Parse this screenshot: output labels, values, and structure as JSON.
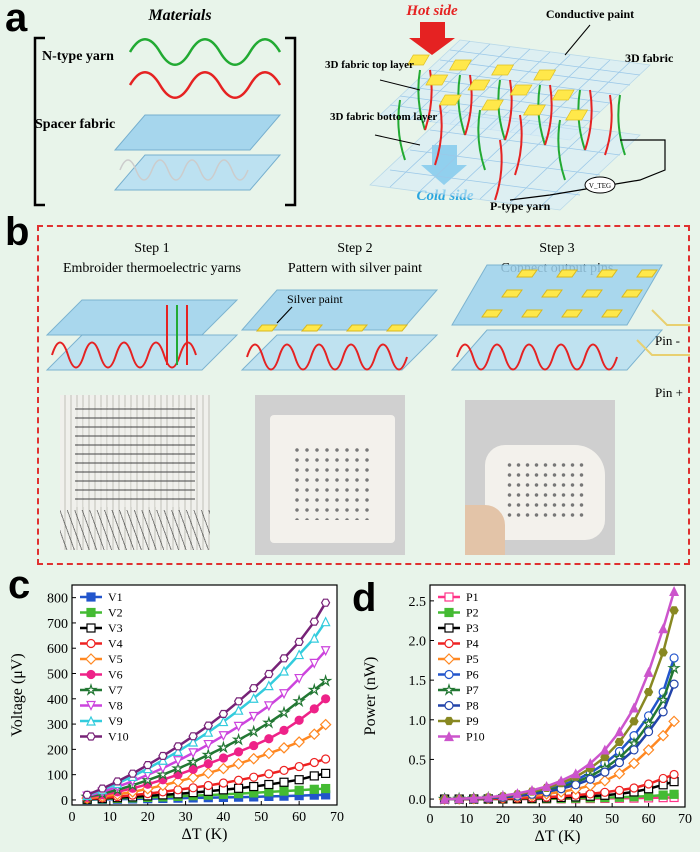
{
  "panel_a": {
    "letter": "a",
    "materials_title": "Materials",
    "n_type_yarn": "N-type yarn",
    "spacer_fabric": "Spacer fabric",
    "hot_side": "Hot side",
    "cold_side": "Cold side",
    "conductive_paint": "Conductive paint",
    "fabric_3d": "3D fabric",
    "top_layer": "3D fabric top layer",
    "bottom_layer": "3D fabric bottom layer",
    "p_type_yarn": "P-type yarn",
    "meter_label": "V_TEG"
  },
  "panel_b": {
    "letter": "b",
    "steps": [
      {
        "title": "Step 1",
        "desc": "Embroider thermoelectric yarns"
      },
      {
        "title": "Step 2",
        "desc": "Pattern with silver paint"
      },
      {
        "title": "Step 3",
        "desc": "Connect output pins"
      }
    ],
    "silver_paint": "Silver paint",
    "pin_minus": "Pin -",
    "pin_plus": "Pin +"
  },
  "panel_c": {
    "letter": "c"
  },
  "panel_d": {
    "letter": "d"
  },
  "chart_data": [
    {
      "type": "line",
      "title": "",
      "xlabel": "ΔT (K)",
      "ylabel": "Voltage (μV)",
      "xlim": [
        0,
        70
      ],
      "ylim": [
        -20,
        850
      ],
      "xticks": [
        0,
        10,
        20,
        30,
        40,
        50,
        60,
        70
      ],
      "yticks": [
        0,
        100,
        200,
        300,
        400,
        500,
        600,
        700,
        800
      ],
      "legend_position": "top-left",
      "x": [
        4,
        8,
        12,
        16,
        20,
        24,
        28,
        32,
        36,
        40,
        44,
        48,
        52,
        56,
        60,
        64,
        67
      ],
      "series": [
        {
          "name": "V1",
          "color": "#2255cc",
          "marker": "square-filled",
          "values": [
            1,
            2,
            3,
            4,
            5,
            6,
            7,
            8,
            9,
            10,
            11,
            12,
            14,
            15,
            17,
            19,
            20
          ]
        },
        {
          "name": "V2",
          "color": "#44bb33",
          "marker": "square-filled",
          "values": [
            2,
            4,
            6,
            8,
            10,
            12,
            14,
            17,
            19,
            22,
            25,
            28,
            32,
            35,
            38,
            42,
            45
          ]
        },
        {
          "name": "V3",
          "color": "#000000",
          "marker": "square-open",
          "values": [
            3,
            6,
            9,
            12,
            16,
            20,
            24,
            29,
            34,
            40,
            46,
            53,
            61,
            70,
            80,
            95,
            105
          ]
        },
        {
          "name": "V4",
          "color": "#ee2222",
          "marker": "circle-open",
          "values": [
            4,
            8,
            13,
            19,
            25,
            32,
            40,
            48,
            57,
            67,
            78,
            90,
            103,
            117,
            132,
            148,
            162
          ]
        },
        {
          "name": "V5",
          "color": "#ff8822",
          "marker": "diamond-open",
          "values": [
            7,
            14,
            22,
            32,
            44,
            58,
            73,
            89,
            106,
            124,
            143,
            163,
            184,
            206,
            229,
            260,
            298
          ]
        },
        {
          "name": "V6",
          "color": "#ee2288",
          "marker": "circle-half",
          "values": [
            10,
            20,
            32,
            46,
            62,
            80,
            100,
            121,
            143,
            166,
            190,
            215,
            242,
            275,
            315,
            360,
            400
          ]
        },
        {
          "name": "V7",
          "color": "#227733",
          "marker": "star-open",
          "values": [
            12,
            25,
            40,
            58,
            78,
            100,
            124,
            150,
            178,
            207,
            238,
            270,
            305,
            345,
            390,
            435,
            470
          ]
        },
        {
          "name": "V8",
          "color": "#cc44dd",
          "marker": "triangle-down-open",
          "values": [
            15,
            32,
            52,
            74,
            99,
            126,
            155,
            186,
            219,
            254,
            291,
            330,
            372,
            420,
            480,
            540,
            590
          ]
        },
        {
          "name": "V9",
          "color": "#33ccdd",
          "marker": "triangle-up-open",
          "values": [
            18,
            40,
            65,
            93,
            124,
            157,
            192,
            229,
            268,
            310,
            355,
            402,
            452,
            510,
            575,
            640,
            705
          ]
        },
        {
          "name": "V10",
          "color": "#772277",
          "marker": "hexagon-open",
          "values": [
            20,
            45,
            73,
            104,
            138,
            174,
            212,
            252,
            294,
            340,
            390,
            442,
            498,
            560,
            625,
            705,
            780
          ]
        }
      ]
    },
    {
      "type": "line",
      "title": "",
      "xlabel": "ΔT (K)",
      "ylabel": "Power (nW)",
      "xlim": [
        0,
        70
      ],
      "ylim": [
        -0.1,
        2.7
      ],
      "xticks": [
        0,
        10,
        20,
        30,
        40,
        50,
        60,
        70
      ],
      "yticks": [
        0.0,
        0.5,
        1.0,
        1.5,
        2.0,
        2.5
      ],
      "legend_position": "top-left",
      "x": [
        4,
        8,
        12,
        16,
        20,
        24,
        28,
        32,
        36,
        40,
        44,
        48,
        52,
        56,
        60,
        64,
        67
      ],
      "series": [
        {
          "name": "P1",
          "color": "#ff3388",
          "marker": "square-open",
          "values": [
            0,
            0,
            0,
            0,
            0,
            0,
            0.001,
            0.002,
            0.003,
            0.004,
            0.006,
            0.008,
            0.01,
            0.012,
            0.015,
            0.018,
            0.02
          ]
        },
        {
          "name": "P2",
          "color": "#44bb33",
          "marker": "square-filled",
          "values": [
            0,
            0,
            0,
            0,
            0.001,
            0.002,
            0.003,
            0.005,
            0.007,
            0.01,
            0.014,
            0.018,
            0.023,
            0.03,
            0.038,
            0.05,
            0.06
          ]
        },
        {
          "name": "P3",
          "color": "#000000",
          "marker": "square-open",
          "values": [
            0,
            0,
            0.001,
            0.002,
            0.004,
            0.006,
            0.01,
            0.014,
            0.02,
            0.027,
            0.036,
            0.048,
            0.065,
            0.09,
            0.13,
            0.18,
            0.22
          ]
        },
        {
          "name": "P4",
          "color": "#ee2222",
          "marker": "circle-open",
          "values": [
            0,
            0.001,
            0.002,
            0.004,
            0.007,
            0.011,
            0.017,
            0.025,
            0.035,
            0.048,
            0.065,
            0.085,
            0.11,
            0.14,
            0.19,
            0.26,
            0.31
          ]
        },
        {
          "name": "P5",
          "color": "#ff8822",
          "marker": "diamond-open",
          "values": [
            0,
            0.002,
            0.005,
            0.01,
            0.018,
            0.03,
            0.045,
            0.065,
            0.09,
            0.125,
            0.17,
            0.23,
            0.32,
            0.45,
            0.62,
            0.8,
            0.98
          ]
        },
        {
          "name": "P6",
          "color": "#2255cc",
          "marker": "circle-open",
          "values": [
            0,
            0.003,
            0.008,
            0.016,
            0.03,
            0.05,
            0.08,
            0.12,
            0.17,
            0.24,
            0.33,
            0.45,
            0.6,
            0.8,
            1.05,
            1.35,
            1.78
          ]
        },
        {
          "name": "P7",
          "color": "#227733",
          "marker": "star-open",
          "values": [
            0,
            0.003,
            0.007,
            0.014,
            0.026,
            0.044,
            0.07,
            0.105,
            0.15,
            0.21,
            0.29,
            0.39,
            0.52,
            0.7,
            0.95,
            1.25,
            1.65
          ]
        },
        {
          "name": "P8",
          "color": "#2244aa",
          "marker": "circle-open",
          "values": [
            0,
            0.002,
            0.006,
            0.012,
            0.022,
            0.038,
            0.06,
            0.09,
            0.13,
            0.18,
            0.25,
            0.34,
            0.46,
            0.62,
            0.85,
            1.1,
            1.45
          ]
        },
        {
          "name": "P9",
          "color": "#888822",
          "marker": "hexagon-filled",
          "values": [
            0,
            0.004,
            0.01,
            0.02,
            0.036,
            0.06,
            0.095,
            0.14,
            0.2,
            0.28,
            0.39,
            0.53,
            0.72,
            0.98,
            1.35,
            1.85,
            2.38
          ]
        },
        {
          "name": "P10",
          "color": "#cc55cc",
          "marker": "triangle-up-filled",
          "values": [
            0,
            0.005,
            0.012,
            0.024,
            0.043,
            0.07,
            0.11,
            0.16,
            0.23,
            0.32,
            0.45,
            0.62,
            0.85,
            1.15,
            1.6,
            2.15,
            2.62
          ]
        }
      ]
    }
  ]
}
